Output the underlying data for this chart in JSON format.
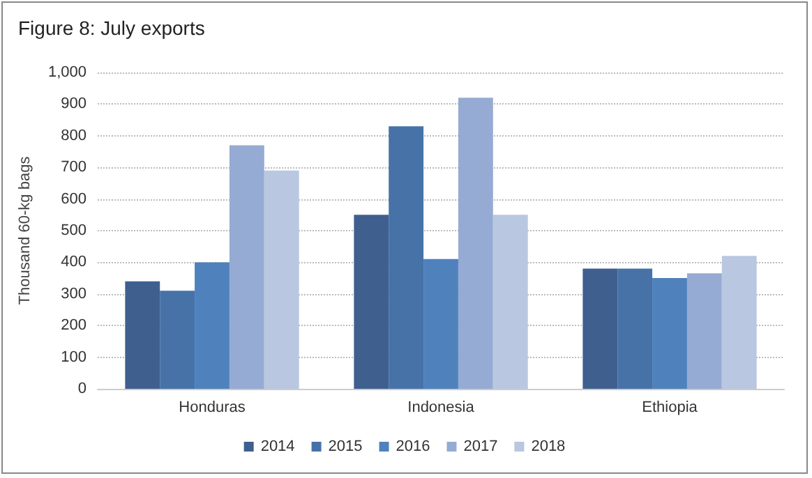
{
  "chart_data": {
    "type": "bar",
    "title": "Figure 8: July exports",
    "ylabel": "Thousand 60-kg bags",
    "categories": [
      "Honduras",
      "Indonesia",
      "Ethiopia"
    ],
    "series": [
      {
        "name": "2014",
        "color": "#3f5f8f",
        "values": [
          340,
          550,
          380
        ]
      },
      {
        "name": "2015",
        "color": "#4672a8",
        "values": [
          310,
          830,
          380
        ]
      },
      {
        "name": "2016",
        "color": "#4f81bd",
        "values": [
          400,
          410,
          350
        ]
      },
      {
        "name": "2017",
        "color": "#95abd3",
        "values": [
          770,
          920,
          365
        ]
      },
      {
        "name": "2018",
        "color": "#b9c7e0",
        "values": [
          690,
          550,
          420
        ]
      }
    ],
    "ylim": [
      0,
      1000
    ],
    "yticks": [
      {
        "value": 0,
        "label": "0"
      },
      {
        "value": 100,
        "label": "100"
      },
      {
        "value": 200,
        "label": "200"
      },
      {
        "value": 300,
        "label": "300"
      },
      {
        "value": 400,
        "label": "400"
      },
      {
        "value": 500,
        "label": "500"
      },
      {
        "value": 600,
        "label": "600"
      },
      {
        "value": 700,
        "label": "700"
      },
      {
        "value": 800,
        "label": "800"
      },
      {
        "value": 900,
        "label": "900"
      },
      {
        "value": 1000,
        "label": "1,000"
      }
    ],
    "grid": "y",
    "legend": "bottom"
  }
}
